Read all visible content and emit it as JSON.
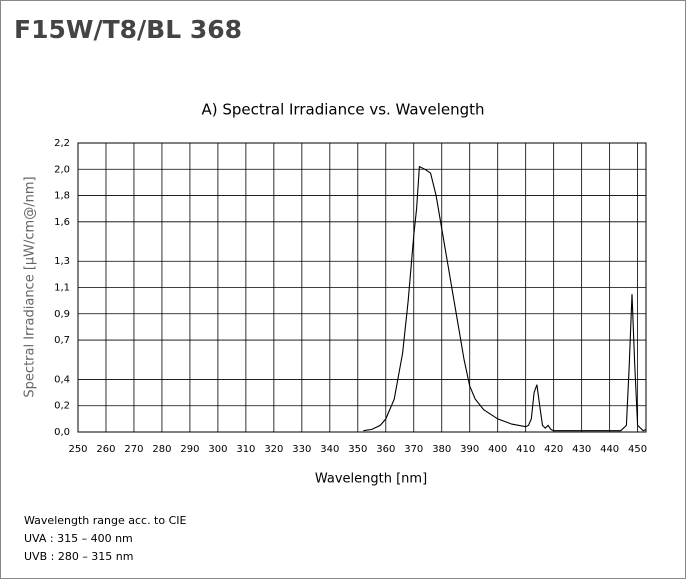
{
  "page_title": "F15W/T8/BL 368",
  "chart_data": {
    "type": "line",
    "title": "A)  Spectral Irradiance  vs.  Wavelength",
    "x_label": "Wavelength  [nm]",
    "y_label": "Spectral Irradiance [µW/cm@/nm]",
    "xlim": [
      250,
      453
    ],
    "xticks": [
      250,
      260,
      270,
      280,
      290,
      300,
      310,
      320,
      330,
      340,
      350,
      360,
      370,
      380,
      390,
      400,
      410,
      420,
      430,
      440,
      450
    ],
    "ylim": [
      0,
      2.2
    ],
    "yticks": [
      {
        "value": 0,
        "label": "0,0"
      },
      {
        "value": 0.2,
        "label": "0,2"
      },
      {
        "value": 0.4,
        "label": "0,4"
      },
      {
        "value": 0.7,
        "label": "0,7"
      },
      {
        "value": 0.9,
        "label": "0,9"
      },
      {
        "value": 1.1,
        "label": "1,1"
      },
      {
        "value": 1.3,
        "label": "1,3"
      },
      {
        "value": 1.6,
        "label": "1,6"
      },
      {
        "value": 1.8,
        "label": "1,8"
      },
      {
        "value": 2.0,
        "label": "2,0"
      },
      {
        "value": 2.2,
        "label": "2,2"
      }
    ],
    "grid": true,
    "color": "#000000",
    "x": [
      352,
      355,
      358,
      360,
      363,
      366,
      368,
      370,
      371,
      372,
      374,
      376,
      378,
      380,
      382,
      384,
      386,
      388,
      390,
      392,
      395,
      400,
      405,
      410,
      411,
      412,
      413,
      414,
      415,
      416,
      417,
      418,
      419,
      420,
      444,
      446,
      447,
      448,
      449,
      450,
      452,
      453
    ],
    "values": [
      0.01,
      0.02,
      0.05,
      0.1,
      0.25,
      0.6,
      1.0,
      1.5,
      1.7,
      2.02,
      2.0,
      1.97,
      1.8,
      1.55,
      1.3,
      1.05,
      0.8,
      0.55,
      0.35,
      0.25,
      0.17,
      0.1,
      0.06,
      0.04,
      0.05,
      0.1,
      0.3,
      0.36,
      0.2,
      0.05,
      0.03,
      0.05,
      0.02,
      0.01,
      0.01,
      0.05,
      0.5,
      1.05,
      0.5,
      0.05,
      0.01,
      0.02
    ]
  },
  "notes": [
    "Wavelength range acc. to CIE",
    "UVA :  315 – 400 nm",
    "UVB :  280 – 315 nm"
  ]
}
